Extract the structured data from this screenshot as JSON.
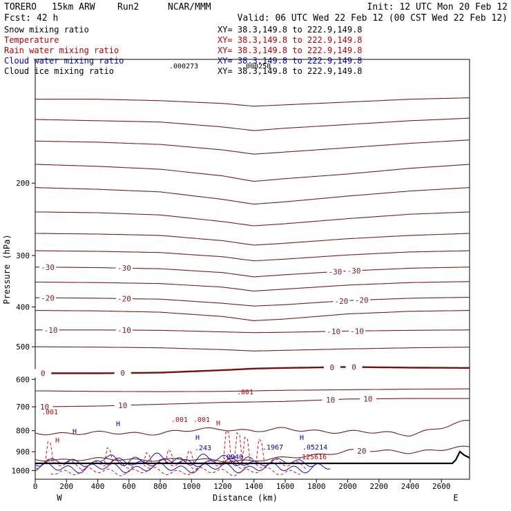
{
  "header": {
    "model": "TORERO",
    "resolution": "15km ARW",
    "run": "Run2",
    "center": "NCAR/MMM",
    "init": "Init: 12 UTC Mon 20 Feb 12",
    "forecast": "Fcst:   42 h",
    "valid": "Valid: 06 UTC Wed 22 Feb 12 (00 CST Wed 22 Feb 12)"
  },
  "fields": [
    {
      "label": "Snow mixing ratio",
      "xy": "XY=  38.3,149.8 to 222.9,149.8",
      "color": "#000000"
    },
    {
      "label": "Temperature",
      "xy": "XY=  38.3,149.8 to 222.9,149.8",
      "color": "#c00000"
    },
    {
      "label": "Rain water mixing ratio",
      "xy": "XY=  38.3,149.8 to 222.9,149.8",
      "color": "#c00000"
    },
    {
      "label": "Cloud water mixing ratio",
      "xy": "XY=  38.3,149.8 to 222.9,149.8",
      "color": "#0000c0"
    },
    {
      "label": "Cloud ice mixing ratio",
      "xy": "XY=  38.3,149.8 to 222.9,149.8",
      "color": "#000000"
    }
  ],
  "chart_data": {
    "type": "contour cross-section",
    "xlabel": "Distance (km)",
    "ylabel": "Pressure (hPa)",
    "xlim": [
      0,
      2780
    ],
    "ylim": [
      1050,
      100
    ],
    "x_ticks": [
      "0",
      "200",
      "400",
      "600",
      "800",
      "1000",
      "1200",
      "1400",
      "1600",
      "1800",
      "2000",
      "2200",
      "2400",
      "2600"
    ],
    "y_ticks": [
      "200",
      "300",
      "400",
      "500",
      "600",
      "700",
      "800",
      "900",
      "1000"
    ],
    "x_end_labels": {
      "left": "W",
      "right": "E"
    },
    "isotherm_labels": [
      {
        "label": "-30",
        "positions_km": [
          80,
          570,
          1920,
          2040
        ]
      },
      {
        "label": "-20",
        "positions_km": [
          80,
          570,
          1960,
          2090
        ]
      },
      {
        "label": "-10",
        "positions_km": [
          100,
          570,
          1910,
          2060
        ]
      },
      {
        "label": "0",
        "positions_km": [
          50,
          560,
          1900,
          2040
        ]
      },
      {
        "label": "10",
        "positions_km": [
          60,
          560,
          1890,
          2130
        ]
      },
      {
        "label": "20",
        "positions_km": [
          2090
        ]
      }
    ],
    "isotherm_lines_hPa": {
      "x_km": [
        0,
        400,
        800,
        1200,
        1400,
        1600,
        2000,
        2400,
        2780
      ],
      "levels": [
        {
          "value": -70,
          "p": [
            125,
            125,
            126,
            128,
            130,
            129,
            127,
            125,
            124
          ]
        },
        {
          "value": -65,
          "p": [
            140,
            141,
            142,
            146,
            149,
            147,
            144,
            141,
            139
          ]
        },
        {
          "value": -60,
          "p": [
            158,
            159,
            161,
            166,
            170,
            168,
            164,
            160,
            157
          ]
        },
        {
          "value": -55,
          "p": [
            180,
            182,
            185,
            192,
            198,
            195,
            190,
            184,
            180
          ]
        },
        {
          "value": -50,
          "p": [
            205,
            207,
            210,
            219,
            225,
            222,
            215,
            209,
            205
          ]
        },
        {
          "value": -45,
          "p": [
            235,
            236,
            239,
            248,
            254,
            251,
            244,
            238,
            235
          ]
        },
        {
          "value": -40,
          "p": [
            265,
            266,
            268,
            276,
            283,
            280,
            273,
            268,
            265
          ]
        },
        {
          "value": -35,
          "p": [
            292,
            293,
            295,
            302,
            309,
            306,
            299,
            294,
            292
          ]
        },
        {
          "value": -30,
          "p": [
            320,
            321,
            323,
            330,
            338,
            334,
            327,
            322,
            320
          ]
        },
        {
          "value": -25,
          "p": [
            348,
            349,
            351,
            358,
            366,
            362,
            354,
            349,
            347
          ]
        },
        {
          "value": -20,
          "p": [
            380,
            381,
            383,
            392,
            398,
            395,
            386,
            381,
            379
          ]
        },
        {
          "value": -15,
          "p": [
            408,
            409,
            412,
            422,
            432,
            428,
            416,
            410,
            408
          ]
        },
        {
          "value": -10,
          "p": [
            455,
            455,
            456,
            460,
            462,
            461,
            458,
            456,
            455
          ]
        },
        {
          "value": -5,
          "p": [
            500,
            501,
            503,
            508,
            512,
            510,
            506,
            503,
            501
          ]
        },
        {
          "value": 0,
          "p": [
            580,
            580,
            578,
            570,
            565,
            563,
            560,
            562,
            563
          ]
        },
        {
          "value": 5,
          "p": [
            640,
            642,
            643,
            642,
            640,
            638,
            636,
            634,
            633
          ]
        },
        {
          "value": 10,
          "p": [
            700,
            697,
            690,
            683,
            681,
            679,
            670,
            668,
            668
          ]
        },
        {
          "value": 15,
          "p": [
            810,
            812,
            810,
            790,
            800,
            795,
            805,
            815,
            760
          ]
        },
        {
          "value": 20,
          "p": [
            940,
            940,
            940,
            945,
            945,
            935,
            895,
            900,
            880
          ]
        }
      ]
    },
    "small_labels": [
      ".000273",
      ".000250",
      ".001",
      ".001",
      ".001",
      ".001",
      ".243",
      ".0940",
      ".1967",
      ".05214",
      ".125616",
      "H",
      "H",
      "H",
      "H",
      "H",
      "H"
    ],
    "grid": false
  }
}
